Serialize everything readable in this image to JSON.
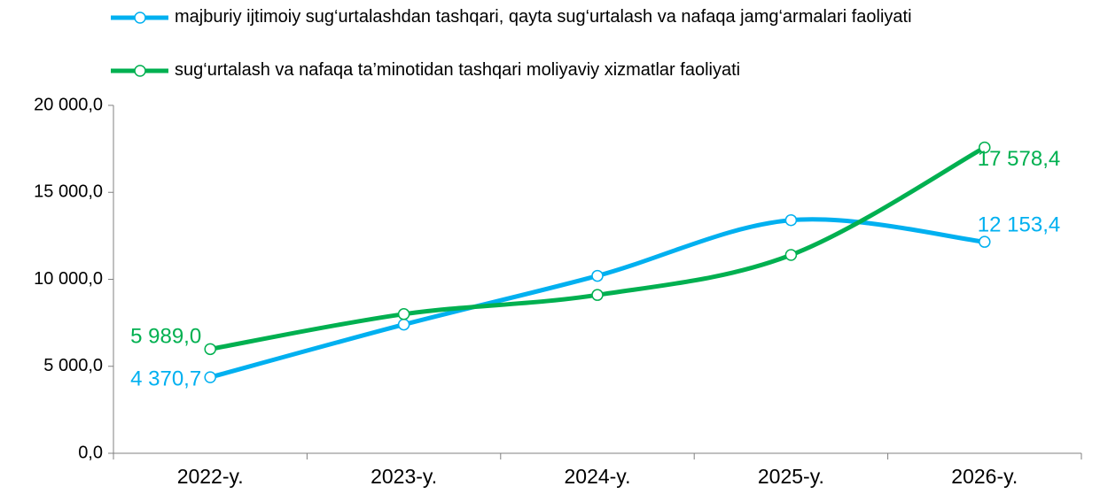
{
  "chart_data": {
    "type": "line",
    "categories": [
      "2022-y.",
      "2023-y.",
      "2024-y.",
      "2025-y.",
      "2026-y."
    ],
    "series": [
      {
        "name": "majburiy ijtimoiy sug‘urtalashdan tashqari, qayta sug‘urtalash va nafaqa jamg‘armalari faoliyati",
        "color": "#00b0f0",
        "values": [
          4370.7,
          7400,
          10200,
          13400,
          12153.4
        ],
        "value_labels": [
          "4 370,7",
          null,
          null,
          null,
          "12 153,4"
        ]
      },
      {
        "name": "sug‘urtalash va nafaqa ta’minotidan tashqari moliyaviy xizmatlar faoliyati",
        "color": "#00b050",
        "values": [
          5989.0,
          8000,
          9100,
          11400,
          17578.4
        ],
        "value_labels": [
          "5 989,0",
          null,
          null,
          null,
          "17 578,4"
        ]
      }
    ],
    "ylim": [
      0,
      20000
    ],
    "yticks": [
      {
        "value": 0,
        "label": "0,0"
      },
      {
        "value": 5000,
        "label": "5 000,0"
      },
      {
        "value": 10000,
        "label": "10 000,0"
      },
      {
        "value": 15000,
        "label": "15 000,0"
      },
      {
        "value": 20000,
        "label": "20 000,0"
      }
    ],
    "smooth": true,
    "legend": "top"
  }
}
